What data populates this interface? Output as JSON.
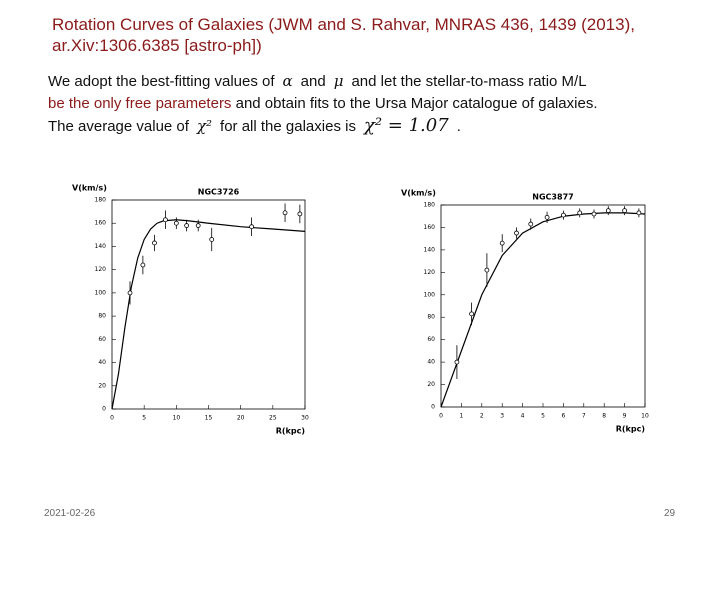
{
  "header": {
    "title_lines": [
      "Rotation Curves of Galaxies (JWM and S. Rahvar, MNRAS 436, 1439 (2013),",
      "ar.Xiv:1306.6385 [astro-ph])"
    ]
  },
  "text": {
    "line1": [
      "We adopt the best-fitting values of",
      "α",
      "and",
      "μ",
      "and let the stellar-to-mass ratio  M/L"
    ],
    "line2": [
      "be the only free parameters",
      "and obtain fits to the Ursa Major catalogue of galaxies."
    ],
    "line3": [
      "The average value of",
      "χ²",
      "for all the galaxies is",
      "χ² = 1.07",
      "."
    ]
  },
  "chart_data": [
    {
      "type": "errorbar",
      "title": "NGC3726",
      "ylabel": "V(km/s)",
      "xlabel": "R(kpc)",
      "xlim": [
        0,
        30
      ],
      "ylim": [
        0,
        180
      ],
      "xticks": [
        0,
        5,
        10,
        15,
        20,
        25,
        30
      ],
      "yticks": [
        0,
        20,
        40,
        60,
        80,
        100,
        120,
        140,
        160,
        180
      ],
      "color": "#000000",
      "observed": {
        "x": [
          2.8,
          4.8,
          6.6,
          8.3,
          10,
          11.6,
          13.4,
          15.5,
          21.7,
          26.9,
          29.2
        ],
        "values": [
          100,
          124,
          143,
          163,
          160,
          158,
          158,
          146,
          157,
          169,
          168
        ],
        "errors": [
          10,
          8,
          7,
          8,
          5,
          5,
          5,
          10,
          8,
          8,
          8
        ]
      },
      "model": {
        "x": [
          0,
          1,
          2,
          3,
          4,
          5,
          6,
          7,
          8,
          10,
          12,
          15,
          20,
          25,
          30
        ],
        "values": [
          0,
          30,
          70,
          105,
          130,
          146,
          155,
          160,
          162,
          163,
          162,
          160,
          157,
          155,
          153
        ]
      }
    },
    {
      "type": "errorbar",
      "title": "NGC3877",
      "ylabel": "V(km/s)",
      "xlabel": "R(kpc)",
      "xlim": [
        0,
        10
      ],
      "ylim": [
        0,
        180
      ],
      "xticks": [
        0,
        1,
        2,
        3,
        4,
        5,
        6,
        7,
        8,
        9,
        10
      ],
      "yticks": [
        0,
        20,
        40,
        60,
        80,
        100,
        120,
        140,
        160,
        180
      ],
      "color": "#000000",
      "observed": {
        "x": [
          0.78,
          1.5,
          2.25,
          3,
          3.7,
          4.4,
          5.2,
          6,
          6.8,
          7.5,
          8.2,
          9,
          9.7
        ],
        "values": [
          40,
          83,
          122,
          146,
          155,
          163,
          169,
          171,
          173,
          172,
          175,
          175,
          173
        ],
        "errors": [
          15,
          10,
          15,
          8,
          5,
          5,
          5,
          4,
          4,
          4,
          4,
          4,
          4
        ]
      },
      "model": {
        "x": [
          0,
          1,
          2,
          3,
          4,
          5,
          6,
          7,
          8,
          9,
          10
        ],
        "values": [
          0,
          50,
          100,
          135,
          155,
          165,
          170,
          172,
          173,
          173,
          172
        ]
      }
    }
  ],
  "footer": {
    "date": "2021-02-26",
    "page": "29"
  }
}
